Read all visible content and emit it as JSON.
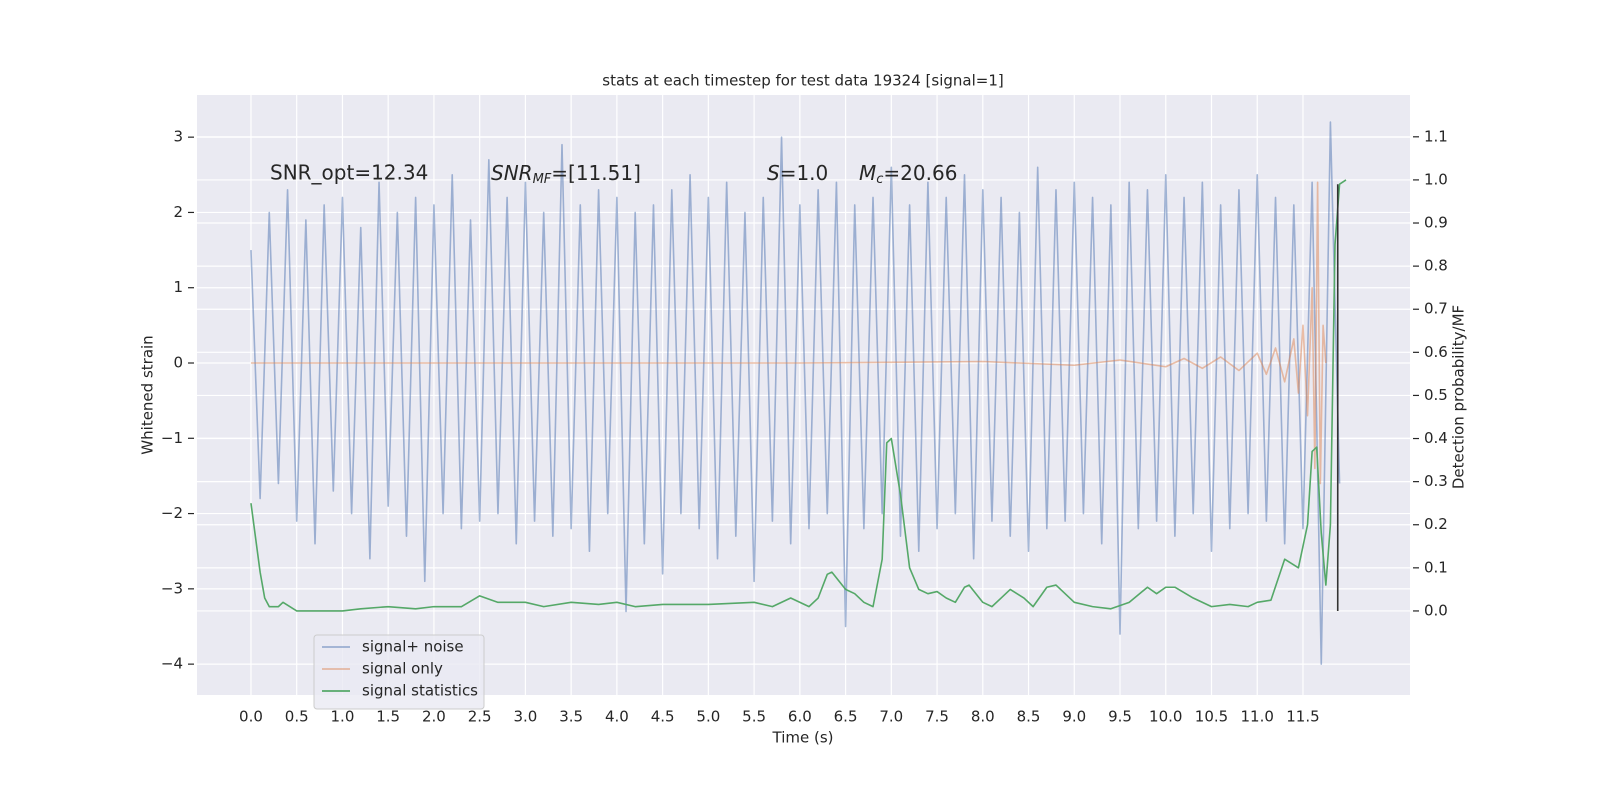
{
  "chart_data": {
    "type": "line",
    "title": "stats at each timestep for test data 19324 [signal=1]",
    "xlabel": "Time (s)",
    "ylabel": "Whitened strain",
    "y2label": "Detection probability/MF",
    "annotations": [
      "SNR_opt=12.34",
      {
        "base": "SNR",
        "sub": "MF",
        "rest": "=[11.51]"
      },
      {
        "base": "S",
        "rest": "=1.0"
      },
      {
        "base": "M",
        "sub": "c",
        "rest": "=20.66"
      }
    ],
    "xlim": [
      -0.59,
      12.67
    ],
    "ylim": [
      -4.41,
      3.56
    ],
    "y2lim": [
      -0.195,
      1.197
    ],
    "xticks": [
      {
        "value": 0,
        "label": "0.0"
      },
      0.5,
      {
        "value": 1,
        "label": "1.0"
      },
      1.5,
      {
        "value": 2,
        "label": "2.0"
      },
      2.5,
      {
        "value": 3,
        "label": "3.0"
      },
      3.5,
      {
        "value": 4,
        "label": "4.0"
      },
      4.5,
      {
        "value": 5,
        "label": "5.0"
      },
      5.5,
      {
        "value": 6,
        "label": "6.0"
      },
      6.5,
      {
        "value": 7,
        "label": "7.0"
      },
      7.5,
      {
        "value": 8,
        "label": "8.0"
      },
      8.5,
      {
        "value": 9,
        "label": "9.0"
      },
      9.5,
      {
        "value": 10,
        "label": "10.0"
      },
      10.5,
      {
        "value": 11,
        "label": "11.0"
      },
      11.5
    ],
    "yticks": [
      {
        "value": -4,
        "label": "−4"
      },
      {
        "value": -3,
        "label": "−3"
      },
      {
        "value": -2,
        "label": "−2"
      },
      {
        "value": -1,
        "label": "−1"
      },
      0,
      1,
      2,
      3
    ],
    "y2ticks": [
      {
        "value": 0,
        "label": "0.0"
      },
      0.1,
      0.2,
      0.3,
      0.4,
      0.5,
      0.6,
      0.7,
      0.8,
      0.9,
      {
        "value": 1,
        "label": "1.0"
      },
      1.1
    ],
    "grid": true,
    "legend": "lower left",
    "series": [
      {
        "name": "signal+ noise",
        "color": "#4c72b0",
        "opacity": 0.5,
        "x": [
          0,
          0.1,
          0.2,
          0.3,
          0.4,
          0.5,
          0.6,
          0.7,
          0.8,
          0.9,
          1,
          1.1,
          1.2,
          1.3,
          1.4,
          1.5,
          1.6,
          1.7,
          1.8,
          1.9,
          2,
          2.1,
          2.2,
          2.3,
          2.4,
          2.5,
          2.6,
          2.7,
          2.8,
          2.9,
          3,
          3.1,
          3.2,
          3.3,
          3.4,
          3.5,
          3.6,
          3.7,
          3.8,
          3.9,
          4,
          4.1,
          4.2,
          4.3,
          4.4,
          4.5,
          4.6,
          4.7,
          4.8,
          4.9,
          5,
          5.1,
          5.2,
          5.3,
          5.4,
          5.5,
          5.6,
          5.7,
          5.8,
          5.9,
          6,
          6.1,
          6.2,
          6.3,
          6.4,
          6.5,
          6.6,
          6.7,
          6.8,
          6.9,
          7,
          7.1,
          7.2,
          7.3,
          7.4,
          7.5,
          7.6,
          7.7,
          7.8,
          7.9,
          8,
          8.1,
          8.2,
          8.3,
          8.4,
          8.5,
          8.6,
          8.7,
          8.8,
          8.9,
          9,
          9.1,
          9.2,
          9.3,
          9.4,
          9.5,
          9.6,
          9.7,
          9.8,
          9.9,
          10,
          10.1,
          10.2,
          10.3,
          10.4,
          10.5,
          10.6,
          10.7,
          10.8,
          10.9,
          11,
          11.1,
          11.2,
          11.3,
          11.4,
          11.5,
          11.6,
          11.7,
          11.8,
          11.9
        ],
        "values": [
          1.5,
          -1.8,
          2.0,
          -1.6,
          2.3,
          -2.1,
          1.9,
          -2.4,
          2.1,
          -1.7,
          2.2,
          -2.0,
          1.8,
          -2.6,
          2.4,
          -1.9,
          2.0,
          -2.3,
          2.2,
          -2.9,
          2.1,
          -2.0,
          2.5,
          -2.2,
          1.9,
          -2.1,
          2.7,
          -2.0,
          2.2,
          -2.4,
          2.4,
          -2.1,
          2.0,
          -2.3,
          2.9,
          -2.2,
          2.1,
          -2.5,
          2.3,
          -2.0,
          2.2,
          -3.3,
          2.0,
          -2.4,
          2.1,
          -2.8,
          2.3,
          -2.0,
          2.5,
          -2.2,
          2.2,
          -2.6,
          2.4,
          -2.3,
          2.0,
          -2.9,
          2.2,
          -2.1,
          3.0,
          -2.4,
          2.1,
          -2.2,
          2.3,
          -2.0,
          2.4,
          -3.5,
          2.1,
          -2.2,
          2.2,
          -2.0,
          2.6,
          -2.3,
          2.1,
          -2.5,
          2.4,
          -2.2,
          2.2,
          -2.0,
          2.5,
          -2.6,
          2.3,
          -2.1,
          2.2,
          -2.3,
          2.0,
          -2.5,
          2.6,
          -2.2,
          2.3,
          -2.1,
          2.4,
          -2.0,
          2.2,
          -2.4,
          2.1,
          -3.6,
          2.4,
          -2.2,
          2.3,
          -2.1,
          2.5,
          -2.3,
          2.2,
          -2.0,
          2.4,
          -2.5,
          2.1,
          -2.2,
          2.3,
          -2.0,
          2.5,
          -2.1,
          2.2,
          -2.4,
          2.1,
          -2.2,
          2.4,
          -4.0,
          3.2,
          -1.6
        ]
      },
      {
        "name": "signal only",
        "color": "#dd8452",
        "opacity": 0.5,
        "x": [
          0,
          2,
          4,
          6,
          8,
          9,
          9.5,
          10,
          10.2,
          10.4,
          10.6,
          10.8,
          11.0,
          11.1,
          11.2,
          11.3,
          11.4,
          11.45,
          11.5,
          11.55,
          11.6,
          11.63,
          11.66,
          11.69,
          11.72,
          11.75
        ],
        "values": [
          0,
          0,
          0,
          0,
          0.02,
          -0.03,
          0.04,
          -0.05,
          0.06,
          -0.07,
          0.08,
          -0.1,
          0.13,
          -0.15,
          0.2,
          -0.25,
          0.32,
          -0.4,
          0.5,
          -0.7,
          1.0,
          -1.4,
          2.4,
          -1.6,
          0.5,
          0
        ]
      },
      {
        "name": "signal statistics",
        "color": "#55a868",
        "opacity": 1,
        "axis": "y2",
        "x": [
          0,
          0.1,
          0.15,
          0.2,
          0.3,
          0.35,
          0.5,
          0.8,
          1.0,
          1.2,
          1.5,
          1.8,
          2.0,
          2.3,
          2.5,
          2.7,
          3.0,
          3.2,
          3.5,
          3.8,
          4.0,
          4.2,
          4.5,
          5.0,
          5.5,
          5.7,
          5.9,
          6.1,
          6.2,
          6.3,
          6.35,
          6.5,
          6.6,
          6.7,
          6.8,
          6.9,
          6.95,
          7.0,
          7.1,
          7.2,
          7.3,
          7.4,
          7.5,
          7.6,
          7.7,
          7.8,
          7.85,
          8.0,
          8.1,
          8.2,
          8.3,
          8.45,
          8.55,
          8.7,
          8.8,
          9.0,
          9.2,
          9.4,
          9.6,
          9.8,
          9.9,
          10.0,
          10.1,
          10.3,
          10.5,
          10.7,
          10.9,
          11.0,
          11.15,
          11.3,
          11.45,
          11.55,
          11.6,
          11.65,
          11.7,
          11.75,
          11.8,
          11.85,
          11.9,
          11.97
        ],
        "values": [
          0.25,
          0.09,
          0.03,
          0.01,
          0.01,
          0.02,
          0.0,
          0.0,
          0.0,
          0.005,
          0.01,
          0.005,
          0.01,
          0.01,
          0.035,
          0.02,
          0.02,
          0.01,
          0.02,
          0.015,
          0.02,
          0.01,
          0.015,
          0.015,
          0.02,
          0.01,
          0.03,
          0.01,
          0.03,
          0.085,
          0.09,
          0.05,
          0.04,
          0.02,
          0.01,
          0.12,
          0.39,
          0.4,
          0.27,
          0.1,
          0.05,
          0.04,
          0.045,
          0.03,
          0.02,
          0.055,
          0.06,
          0.02,
          0.01,
          0.03,
          0.05,
          0.03,
          0.01,
          0.055,
          0.06,
          0.02,
          0.01,
          0.005,
          0.02,
          0.055,
          0.04,
          0.055,
          0.055,
          0.03,
          0.01,
          0.015,
          0.01,
          0.02,
          0.025,
          0.12,
          0.1,
          0.2,
          0.37,
          0.38,
          0.18,
          0.06,
          0.2,
          0.85,
          0.99,
          1.0
        ]
      }
    ],
    "vline": {
      "x": 11.88,
      "values": [
        0,
        0.99
      ],
      "color": "#333333",
      "axis": "y2"
    }
  }
}
